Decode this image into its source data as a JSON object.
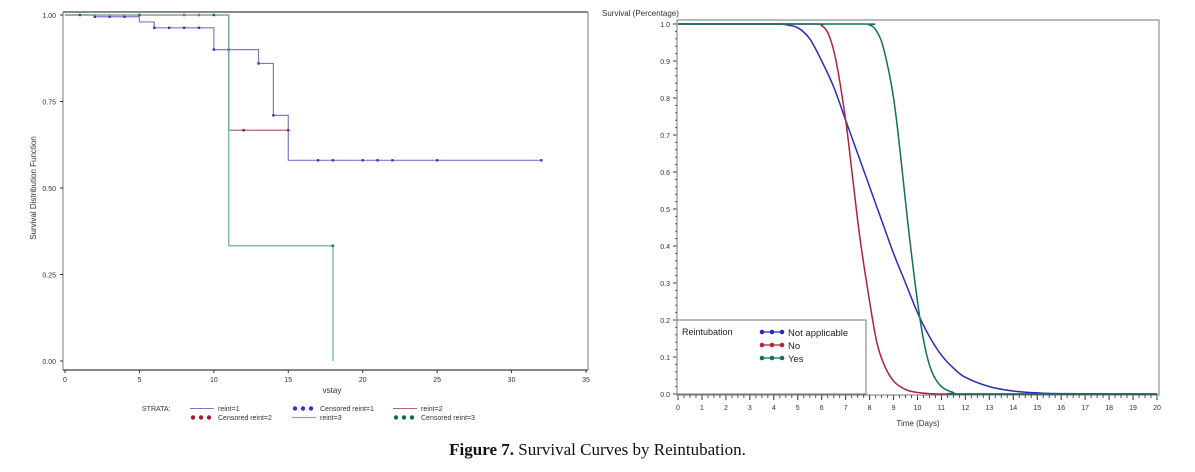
{
  "caption": {
    "label": "Figure 7.",
    "text": "Survival Curves by Reintubation."
  },
  "chart_data": [
    {
      "type": "line",
      "subtype": "kaplan-meier-step",
      "title": "",
      "xlabel": "vstay",
      "ylabel": "Survival Distribution Function",
      "xlim": [
        0,
        35
      ],
      "ylim": [
        0,
        1
      ],
      "xticks": [
        "0",
        "5",
        "10",
        "15",
        "20",
        "25",
        "30",
        "35"
      ],
      "yticks": [
        "0.00",
        "0.25",
        "0.50",
        "0.75",
        "1.00"
      ],
      "grid": false,
      "legend_title": "STRATA:",
      "legend_position": "bottom",
      "legend": [
        {
          "label": "reint=1",
          "kind": "line",
          "color": "#7b7bc8"
        },
        {
          "label": "Censored reint=1",
          "kind": "dots",
          "color": "#3333cc"
        },
        {
          "label": "reint=2",
          "kind": "line",
          "color": "#b06a78"
        },
        {
          "label": "Censored reint=2",
          "kind": "dots",
          "color": "#a01c2c"
        },
        {
          "label": "reint=3",
          "kind": "line",
          "color": "#6fa8a0"
        },
        {
          "label": "Censored reint=3",
          "kind": "dots",
          "color": "#106a5a"
        }
      ],
      "series": [
        {
          "name": "reint=1",
          "color": "#7b7bc8",
          "censor_color": "#3333cc",
          "steps": [
            [
              0,
              1.0
            ],
            [
              2,
              0.995
            ],
            [
              5,
              0.98
            ],
            [
              6,
              0.963
            ],
            [
              10,
              0.9
            ],
            [
              13,
              0.86
            ],
            [
              14,
              0.71
            ],
            [
              15,
              0.58
            ],
            [
              32,
              0.58
            ]
          ],
          "censored": [
            [
              2,
              0.995
            ],
            [
              3,
              0.995
            ],
            [
              4,
              0.995
            ],
            [
              6,
              0.963
            ],
            [
              7,
              0.963
            ],
            [
              8,
              0.963
            ],
            [
              9,
              0.963
            ],
            [
              10,
              0.9
            ],
            [
              11,
              0.9
            ],
            [
              13,
              0.86
            ],
            [
              14,
              0.71
            ],
            [
              17,
              0.58
            ],
            [
              18,
              0.58
            ],
            [
              20,
              0.58
            ],
            [
              21,
              0.58
            ],
            [
              22,
              0.58
            ],
            [
              25,
              0.58
            ],
            [
              32,
              0.58
            ]
          ]
        },
        {
          "name": "reint=2",
          "color": "#b06a78",
          "censor_color": "#a01c2c",
          "steps": [
            [
              0,
              1.0
            ],
            [
              11,
              0.667
            ],
            [
              15,
              0.667
            ]
          ],
          "censored": [
            [
              8,
              1.0
            ],
            [
              9,
              1.0
            ],
            [
              12,
              0.667
            ],
            [
              15,
              0.667
            ]
          ]
        },
        {
          "name": "reint=3",
          "color": "#6fa8a0",
          "censor_color": "#106a5a",
          "steps": [
            [
              0,
              1.0
            ],
            [
              11,
              0.333
            ],
            [
              18,
              0.0
            ]
          ],
          "censored": [
            [
              1,
              1.0
            ],
            [
              5,
              1.0
            ],
            [
              10,
              1.0
            ],
            [
              18,
              0.333
            ]
          ]
        }
      ]
    },
    {
      "type": "line",
      "title": "",
      "xlabel": "Time (Days)",
      "ylabel": "Survival (Percentage)",
      "xlim": [
        0,
        20
      ],
      "ylim": [
        0,
        1
      ],
      "xticks": [
        "0",
        "1",
        "2",
        "3",
        "4",
        "5",
        "6",
        "7",
        "8",
        "9",
        "10",
        "11",
        "12",
        "13",
        "14",
        "15",
        "16",
        "17",
        "18",
        "19",
        "20"
      ],
      "yticks": [
        "0.0",
        "0.1",
        "0.2",
        "0.3",
        "0.4",
        "0.5",
        "0.6",
        "0.7",
        "0.8",
        "0.9",
        "1.0"
      ],
      "grid": false,
      "legend_title": "Reintubation",
      "legend_position": "bottom-left",
      "series": [
        {
          "name": "Not applicable",
          "color": "#2b2bc0",
          "x": [
            0,
            4,
            4.5,
            5,
            5.5,
            6,
            6.5,
            7,
            7.5,
            8,
            8.5,
            9,
            9.5,
            10,
            10.5,
            11,
            11.5,
            12,
            13,
            14,
            15,
            16,
            20
          ],
          "y": [
            1.0,
            1.0,
            0.998,
            0.99,
            0.96,
            0.9,
            0.83,
            0.74,
            0.65,
            0.56,
            0.47,
            0.38,
            0.3,
            0.22,
            0.155,
            0.105,
            0.07,
            0.045,
            0.02,
            0.008,
            0.003,
            0.001,
            0.0
          ]
        },
        {
          "name": "No",
          "color": "#b0233a",
          "x": [
            0,
            5.5,
            6,
            6.3,
            6.6,
            7,
            7.3,
            7.6,
            8,
            8.3,
            8.6,
            9,
            9.5,
            10,
            10.5,
            11,
            12,
            20
          ],
          "y": [
            1.0,
            1.0,
            0.995,
            0.97,
            0.9,
            0.74,
            0.58,
            0.42,
            0.25,
            0.14,
            0.08,
            0.035,
            0.012,
            0.004,
            0.001,
            0.0,
            0.0,
            0.0
          ]
        },
        {
          "name": "Yes",
          "color": "#107060",
          "x": [
            0,
            7.5,
            8,
            8.3,
            8.6,
            9,
            9.3,
            9.6,
            10,
            10.3,
            10.6,
            11,
            11.5,
            12,
            20
          ],
          "y": [
            1.0,
            1.0,
            0.997,
            0.98,
            0.93,
            0.8,
            0.64,
            0.46,
            0.25,
            0.13,
            0.06,
            0.02,
            0.004,
            0.0,
            0.0
          ]
        }
      ]
    }
  ]
}
